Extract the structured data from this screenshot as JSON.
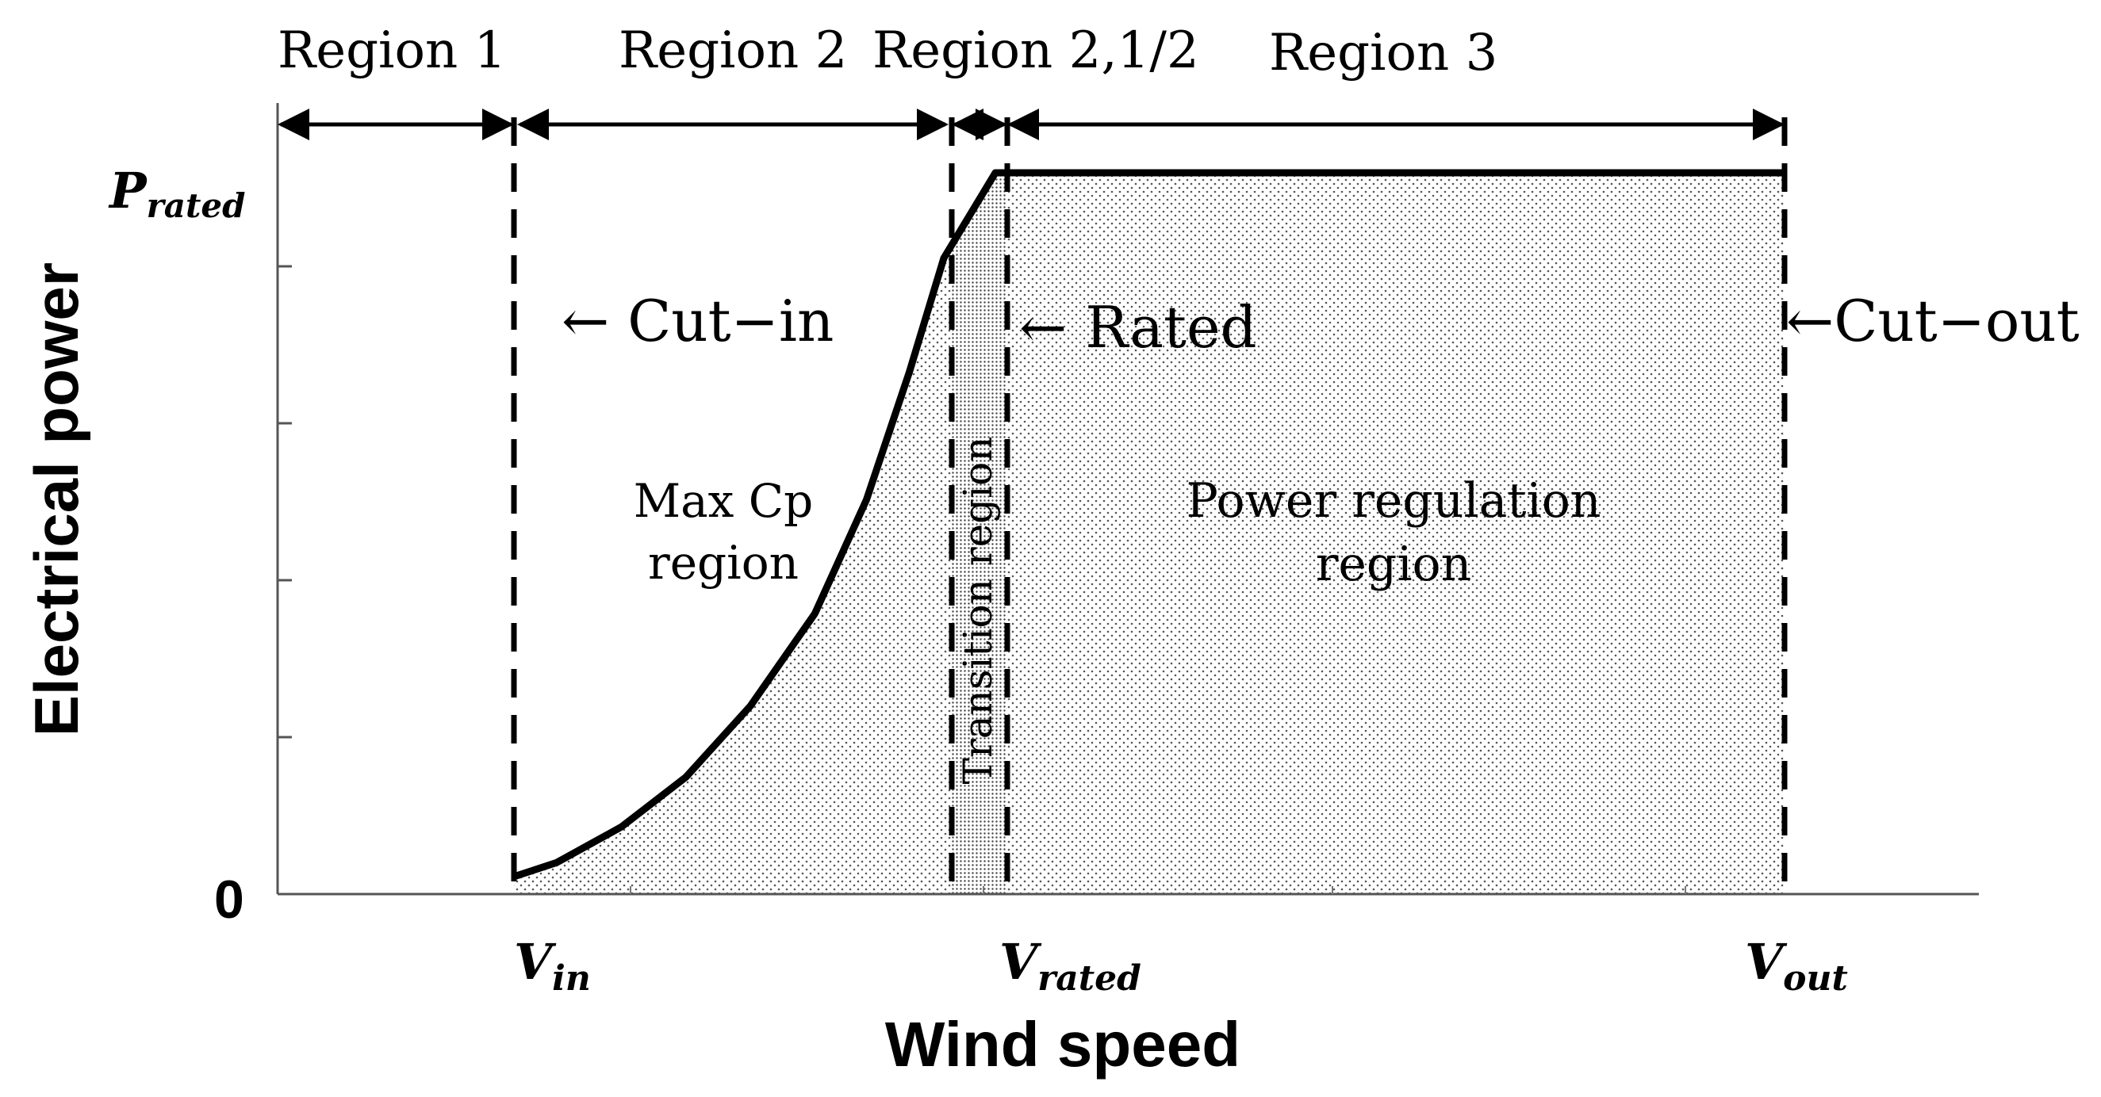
{
  "chart_data": {
    "type": "line",
    "x": [
      "V_in",
      "V_rated",
      "V_out"
    ],
    "xlabel": "Wind speed",
    "ylabel": "Electrical power",
    "y_zero_label": "0",
    "y_top_label": {
      "main": "P",
      "sub": "rated"
    },
    "x_tick_labels": [
      {
        "main": "V",
        "sub": "in"
      },
      {
        "main": "V",
        "sub": "rated"
      },
      {
        "main": "V",
        "sub": "out"
      }
    ],
    "series": [
      {
        "values": [
          0.01,
          0.03,
          0.08,
          0.15,
          0.25,
          0.38,
          0.54,
          0.72,
          0.88,
          1.0,
          1.0
        ],
        "x": [
          0,
          0.1,
          0.25,
          0.4,
          0.55,
          0.7,
          0.82,
          0.92,
          1.0,
          1.12,
          3.0
        ]
      }
    ],
    "regions": [
      {
        "label": "Region 1"
      },
      {
        "label": "Region 2"
      },
      {
        "label": "Region 2,1/2"
      },
      {
        "label": "Region 3"
      }
    ],
    "annotations": [
      {
        "text": "← Cut−in"
      },
      {
        "text": "← Rated"
      },
      {
        "text": "←Cut−out"
      },
      {
        "line1": "Max Cp",
        "line2": "region"
      },
      {
        "text": "Transition region"
      },
      {
        "line1": "Power regulation",
        "line2": "region"
      }
    ],
    "grid": false,
    "legend": "none"
  }
}
